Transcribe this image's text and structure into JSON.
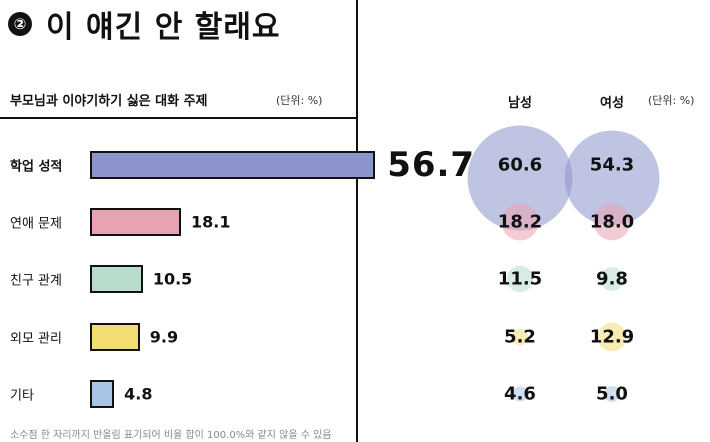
{
  "header": {
    "badge": "②",
    "title": "이 얘긴 안 할래요"
  },
  "chart_data": {
    "type": "bar",
    "title": "부모님과 이야기하기 싫은 대화 주제",
    "unit": "(단위: %)",
    "categories": [
      "학업 성적",
      "연애 문제",
      "친구 관계",
      "외모 관리",
      "기타"
    ],
    "bar_colors": [
      "#8c94cc",
      "#e8a3b3",
      "#b7dccb",
      "#f3dc72",
      "#a8c4e6"
    ],
    "series": [
      {
        "values": [
          56.7,
          18.1,
          10.5,
          9.9,
          4.8
        ]
      },
      {
        "name": "남성",
        "values": [
          60.6,
          18.2,
          11.5,
          5.2,
          4.6
        ]
      },
      {
        "name": "여성",
        "values": [
          54.3,
          18.0,
          9.8,
          12.9,
          5.0
        ]
      }
    ],
    "grid": false
  },
  "right_unit": "(단위: %)",
  "footnote": "소수점 한 자리까지 반올림 표기되어 비율 합이 100.0%와 같지 않을 수 있음"
}
